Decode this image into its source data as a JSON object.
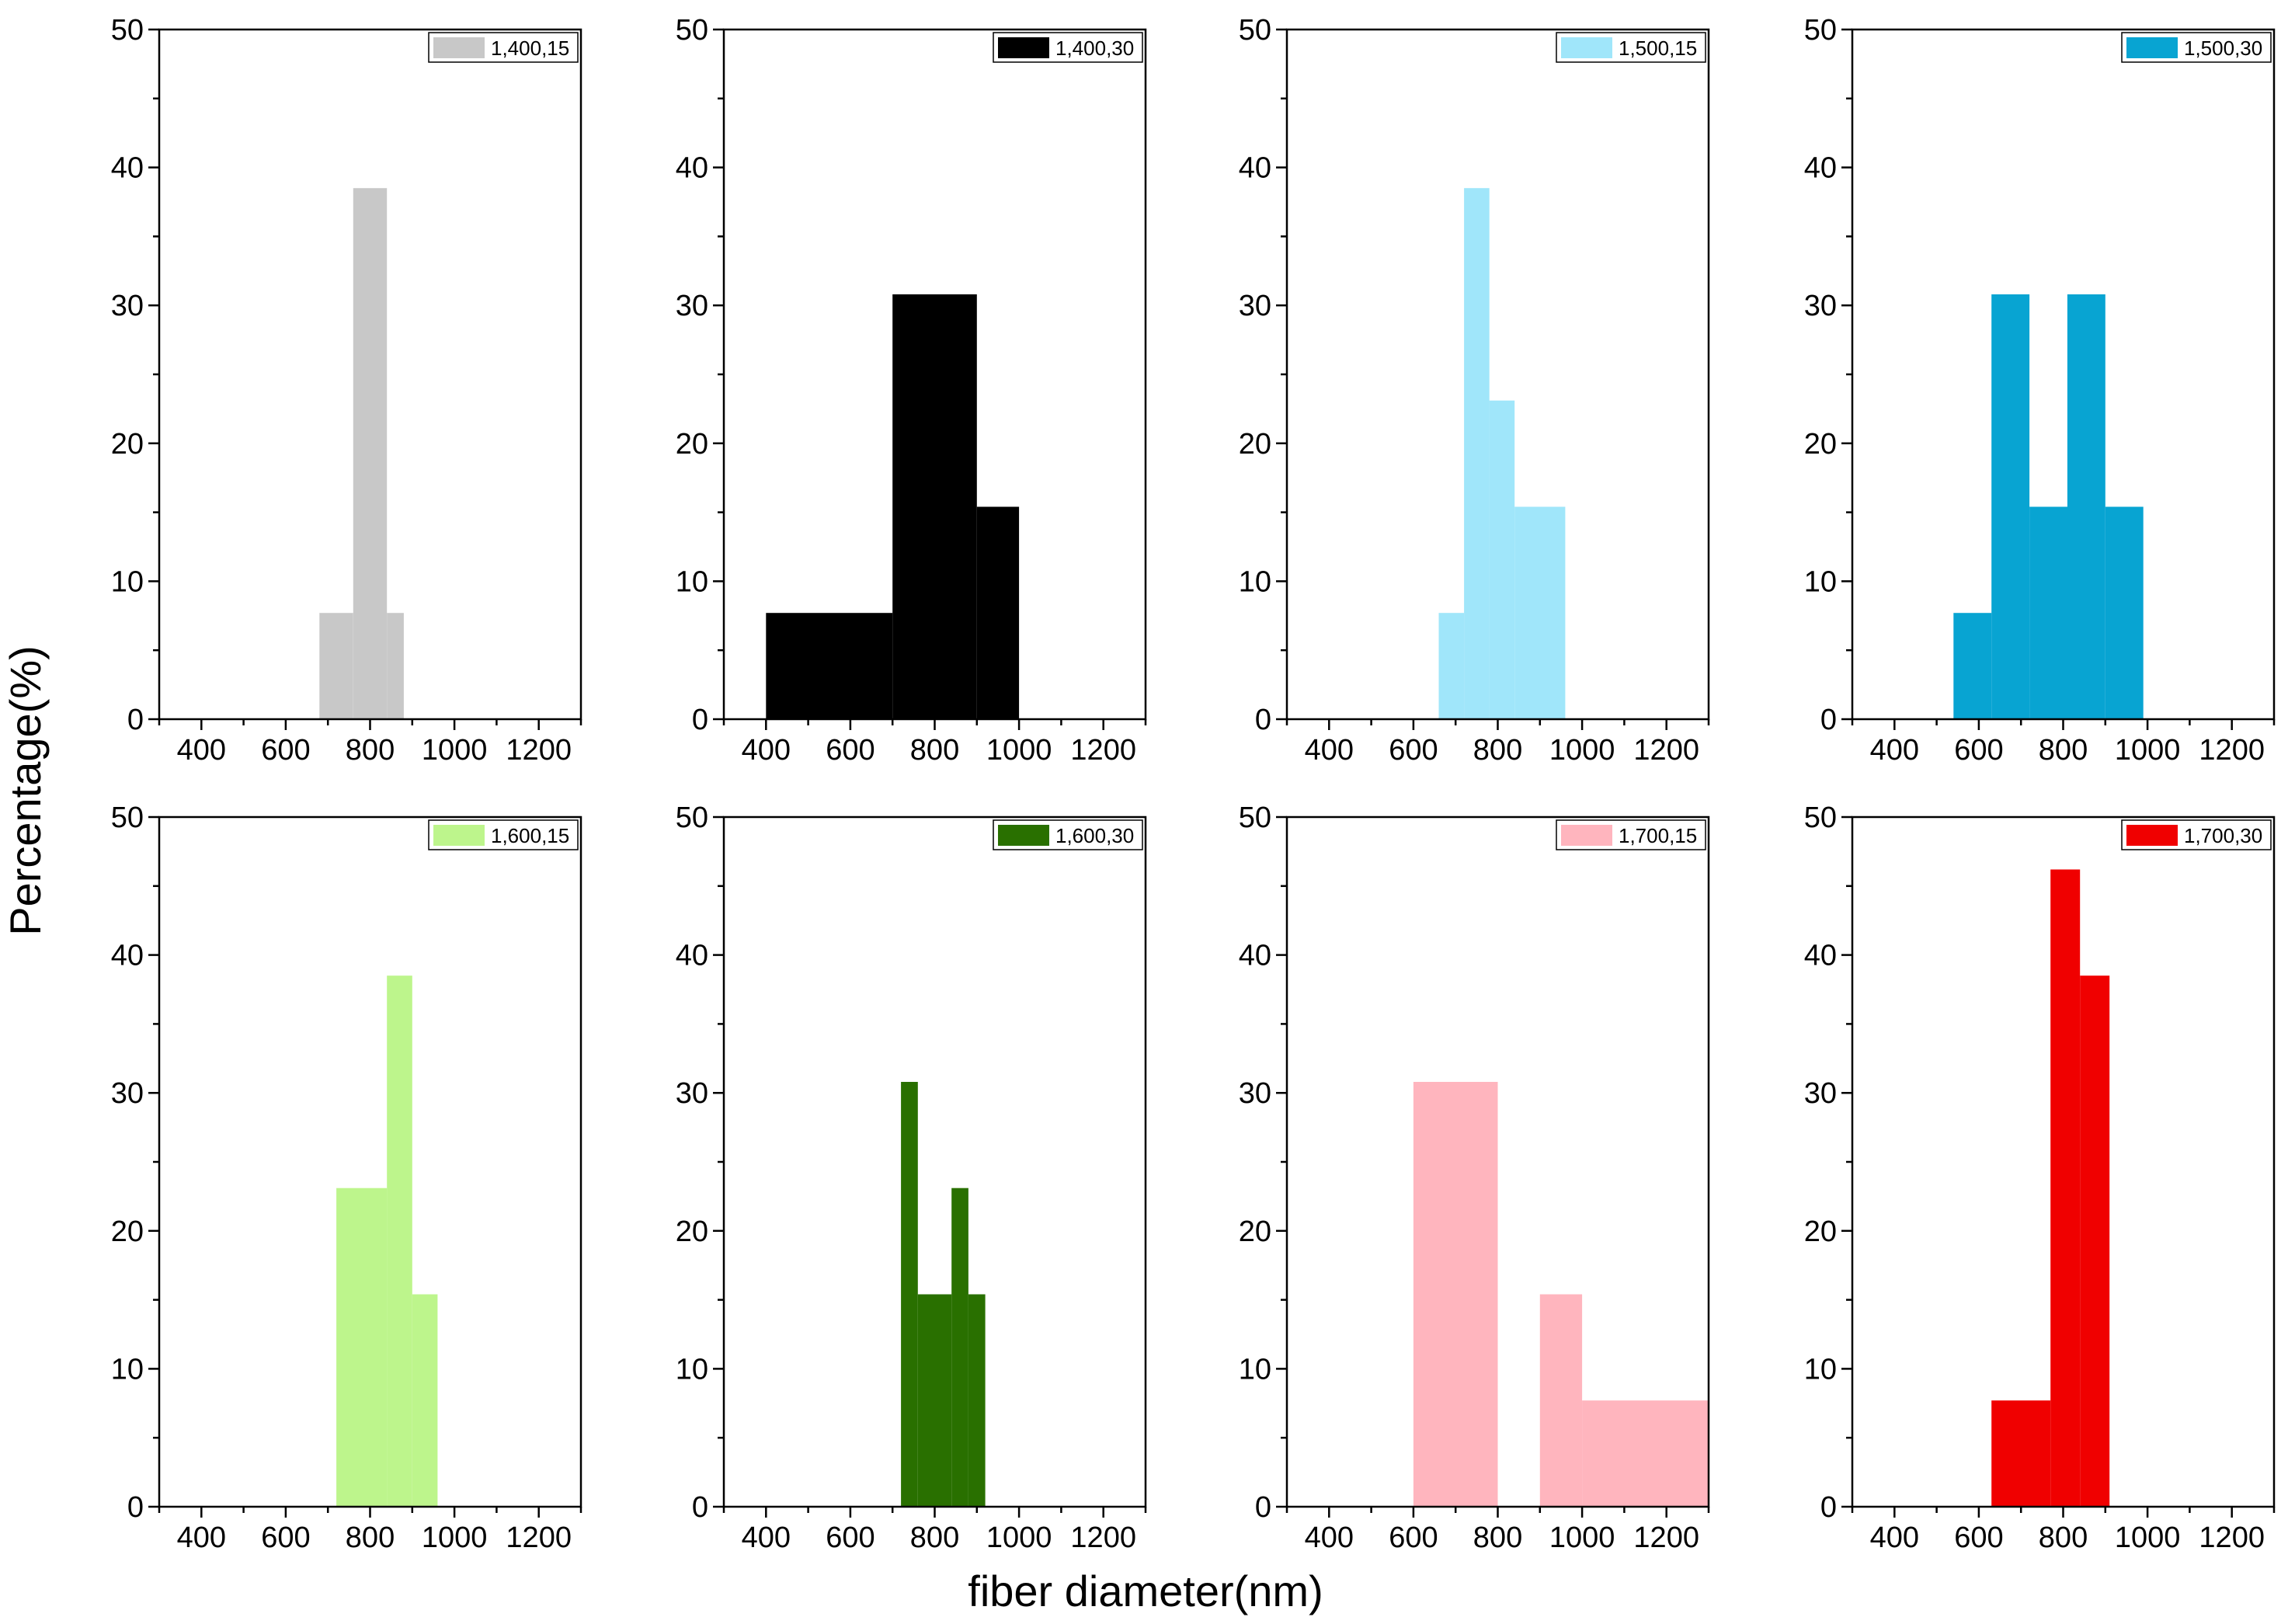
{
  "figure": {
    "ylabel": "Percentage(%)",
    "xlabel": "fiber diameter(nm)"
  },
  "chart_data": [
    {
      "type": "bar",
      "legend": "1,400,15",
      "color": "#c8c8c8",
      "xlim": [
        300,
        1300
      ],
      "ylim": [
        0,
        50
      ],
      "xticks": [
        400,
        600,
        800,
        1000,
        1200
      ],
      "yticks": [
        0,
        10,
        20,
        30,
        40,
        50
      ],
      "bins": [
        {
          "x0": 680,
          "x1": 760,
          "value": 7.7
        },
        {
          "x0": 760,
          "x1": 840,
          "value": 38.5
        },
        {
          "x0": 840,
          "x1": 880,
          "value": 7.7
        }
      ]
    },
    {
      "type": "bar",
      "legend": "1,400,30",
      "color": "#000000",
      "xlim": [
        300,
        1300
      ],
      "ylim": [
        0,
        50
      ],
      "xticks": [
        400,
        600,
        800,
        1000,
        1200
      ],
      "yticks": [
        0,
        10,
        20,
        30,
        40,
        50
      ],
      "bins": [
        {
          "x0": 400,
          "x1": 700,
          "value": 7.7
        },
        {
          "x0": 700,
          "x1": 900,
          "value": 30.8
        },
        {
          "x0": 900,
          "x1": 1000,
          "value": 15.4
        }
      ]
    },
    {
      "type": "bar",
      "legend": "1,500,15",
      "color": "#a0e6fa",
      "xlim": [
        300,
        1300
      ],
      "ylim": [
        0,
        50
      ],
      "xticks": [
        400,
        600,
        800,
        1000,
        1200
      ],
      "yticks": [
        0,
        10,
        20,
        30,
        40,
        50
      ],
      "bins": [
        {
          "x0": 660,
          "x1": 720,
          "value": 7.7
        },
        {
          "x0": 720,
          "x1": 780,
          "value": 38.5
        },
        {
          "x0": 780,
          "x1": 840,
          "value": 23.1
        },
        {
          "x0": 840,
          "x1": 960,
          "value": 15.4
        }
      ]
    },
    {
      "type": "bar",
      "legend": "1,500,30",
      "color": "#08a4d2",
      "xlim": [
        300,
        1300
      ],
      "ylim": [
        0,
        50
      ],
      "xticks": [
        400,
        600,
        800,
        1000,
        1200
      ],
      "yticks": [
        0,
        10,
        20,
        30,
        40,
        50
      ],
      "bins": [
        {
          "x0": 540,
          "x1": 630,
          "value": 7.7
        },
        {
          "x0": 630,
          "x1": 720,
          "value": 30.8
        },
        {
          "x0": 720,
          "x1": 810,
          "value": 15.4
        },
        {
          "x0": 810,
          "x1": 900,
          "value": 30.8
        },
        {
          "x0": 900,
          "x1": 990,
          "value": 15.4
        }
      ]
    },
    {
      "type": "bar",
      "legend": "1,600,15",
      "color": "#bdf58c",
      "xlim": [
        300,
        1300
      ],
      "ylim": [
        0,
        50
      ],
      "xticks": [
        400,
        600,
        800,
        1000,
        1200
      ],
      "yticks": [
        0,
        10,
        20,
        30,
        40,
        50
      ],
      "bins": [
        {
          "x0": 720,
          "x1": 840,
          "value": 23.1
        },
        {
          "x0": 840,
          "x1": 900,
          "value": 38.5
        },
        {
          "x0": 900,
          "x1": 960,
          "value": 15.4
        }
      ]
    },
    {
      "type": "bar",
      "legend": "1,600,30",
      "color": "#297000",
      "xlim": [
        300,
        1300
      ],
      "ylim": [
        0,
        50
      ],
      "xticks": [
        400,
        600,
        800,
        1000,
        1200
      ],
      "yticks": [
        0,
        10,
        20,
        30,
        40,
        50
      ],
      "bins": [
        {
          "x0": 720,
          "x1": 760,
          "value": 30.8
        },
        {
          "x0": 760,
          "x1": 840,
          "value": 15.4
        },
        {
          "x0": 840,
          "x1": 880,
          "value": 23.1
        },
        {
          "x0": 880,
          "x1": 920,
          "value": 15.4
        }
      ]
    },
    {
      "type": "bar",
      "legend": "1,700,15",
      "color": "#ffb5be",
      "xlim": [
        300,
        1300
      ],
      "ylim": [
        0,
        50
      ],
      "xticks": [
        400,
        600,
        800,
        1000,
        1200
      ],
      "yticks": [
        0,
        10,
        20,
        30,
        40,
        50
      ],
      "bins": [
        {
          "x0": 600,
          "x1": 800,
          "value": 30.8
        },
        {
          "x0": 900,
          "x1": 1000,
          "value": 15.4
        },
        {
          "x0": 1000,
          "x1": 1300,
          "value": 7.7
        }
      ]
    },
    {
      "type": "bar",
      "legend": "1,700,30",
      "color": "#f00000",
      "xlim": [
        300,
        1300
      ],
      "ylim": [
        0,
        50
      ],
      "xticks": [
        400,
        600,
        800,
        1000,
        1200
      ],
      "yticks": [
        0,
        10,
        20,
        30,
        40,
        50
      ],
      "bins": [
        {
          "x0": 630,
          "x1": 770,
          "value": 7.7
        },
        {
          "x0": 770,
          "x1": 840,
          "value": 46.2
        },
        {
          "x0": 840,
          "x1": 910,
          "value": 38.5
        }
      ]
    }
  ]
}
